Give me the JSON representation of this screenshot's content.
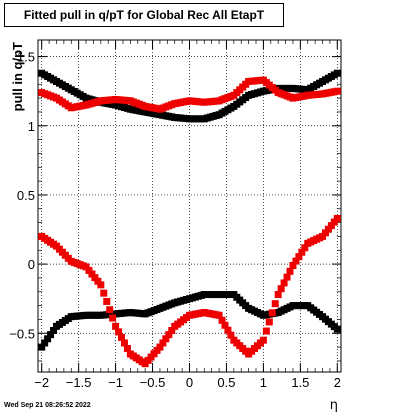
{
  "title": "Fitted pull in q/pT for Global Rec All EtapT",
  "ylabel": "pull in q/pT",
  "xlabel": "η",
  "datestamp": "Wed Sep 21 08:26:52 2022",
  "chart_data": {
    "type": "scatter",
    "title": "Fitted pull in q/pT for Global Rec All EtapT",
    "xlabel": "η",
    "ylabel": "pull in q/pT",
    "xlim": [
      -2.05,
      2.05
    ],
    "ylim": [
      -0.78,
      1.62
    ],
    "xticks": [
      -2,
      -1.5,
      -1,
      -0.5,
      0,
      0.5,
      1,
      1.5,
      2
    ],
    "xtick_labels": [
      "−2",
      "−1.5",
      "−1",
      "−0.5",
      "0",
      "0.5",
      "1",
      "1.5",
      "2"
    ],
    "yticks": [
      -0.5,
      0,
      0.5,
      1,
      1.5
    ],
    "ytick_labels": [
      "−0.5",
      "0",
      "0.5",
      "1",
      "1.5"
    ],
    "grid": true,
    "series": [
      {
        "color": "#000000",
        "marker": "square",
        "x": [
          -2.0,
          -1.8,
          -1.6,
          -1.4,
          -1.2,
          -1.0,
          -0.8,
          -0.6,
          -0.4,
          -0.2,
          0.0,
          0.2,
          0.4,
          0.6,
          0.8,
          1.0,
          1.2,
          1.4,
          1.6,
          1.8,
          2.0
        ],
        "y": [
          1.38,
          1.32,
          1.26,
          1.2,
          1.17,
          1.15,
          1.12,
          1.1,
          1.08,
          1.06,
          1.05,
          1.05,
          1.08,
          1.14,
          1.22,
          1.25,
          1.27,
          1.27,
          1.26,
          1.32,
          1.38
        ]
      },
      {
        "color": "#ee0000",
        "marker": "square",
        "x": [
          -2.0,
          -1.8,
          -1.6,
          -1.4,
          -1.2,
          -1.0,
          -0.8,
          -0.6,
          -0.4,
          -0.2,
          0.0,
          0.2,
          0.4,
          0.6,
          0.8,
          1.0,
          1.2,
          1.4,
          1.6,
          1.8,
          2.0
        ],
        "y": [
          1.24,
          1.2,
          1.13,
          1.15,
          1.18,
          1.19,
          1.18,
          1.14,
          1.12,
          1.16,
          1.18,
          1.17,
          1.18,
          1.22,
          1.32,
          1.33,
          1.24,
          1.2,
          1.22,
          1.23,
          1.25
        ]
      },
      {
        "color": "#000000",
        "marker": "square",
        "x": [
          -2.0,
          -1.8,
          -1.6,
          -1.4,
          -1.2,
          -1.0,
          -0.8,
          -0.6,
          -0.4,
          -0.2,
          0.0,
          0.2,
          0.4,
          0.6,
          0.8,
          1.0,
          1.2,
          1.4,
          1.6,
          1.8,
          2.0
        ],
        "y": [
          -0.6,
          -0.45,
          -0.38,
          -0.37,
          -0.37,
          -0.36,
          -0.35,
          -0.36,
          -0.32,
          -0.28,
          -0.25,
          -0.22,
          -0.22,
          -0.22,
          -0.32,
          -0.37,
          -0.35,
          -0.3,
          -0.3,
          -0.38,
          -0.47
        ]
      },
      {
        "color": "#ee0000",
        "marker": "square",
        "x": [
          -2.0,
          -1.8,
          -1.6,
          -1.4,
          -1.2,
          -1.0,
          -0.8,
          -0.6,
          -0.4,
          -0.2,
          0.0,
          0.2,
          0.4,
          0.6,
          0.8,
          1.0,
          1.2,
          1.4,
          1.6,
          1.8,
          2.0
        ],
        "y": [
          0.2,
          0.13,
          0.02,
          -0.02,
          -0.15,
          -0.45,
          -0.65,
          -0.72,
          -0.6,
          -0.45,
          -0.37,
          -0.35,
          -0.37,
          -0.55,
          -0.65,
          -0.55,
          -0.22,
          -0.01,
          0.15,
          0.2,
          0.33
        ]
      }
    ]
  }
}
